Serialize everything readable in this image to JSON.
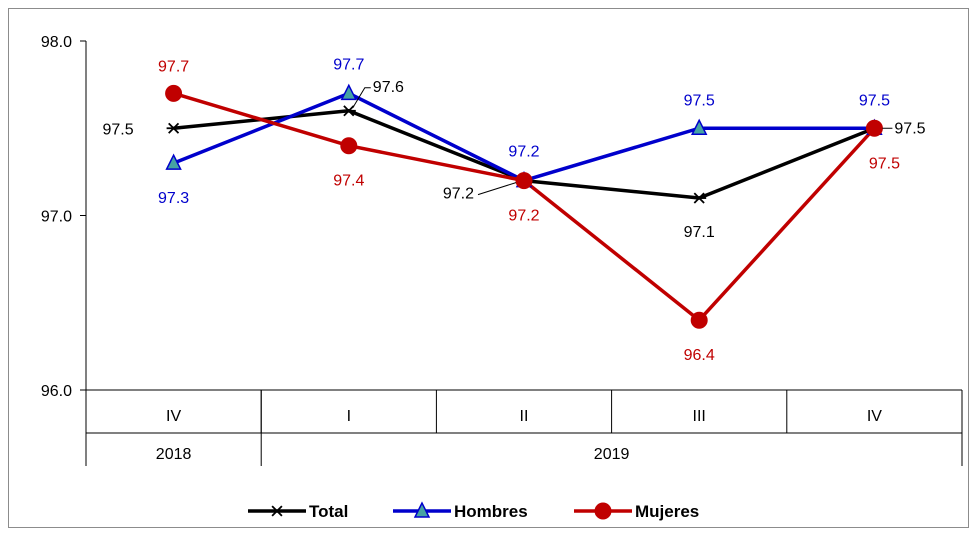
{
  "chart_data": {
    "type": "line",
    "title": "",
    "xlabel": "",
    "ylabel": "",
    "ylim": [
      96.0,
      98.0
    ],
    "yticks": [
      "96.0",
      "97.0",
      "98.0"
    ],
    "categories": [
      "IV",
      "I",
      "II",
      "III",
      "IV"
    ],
    "groups": [
      {
        "label": "2018",
        "span": [
          0,
          0
        ]
      },
      {
        "label": "2019",
        "span": [
          1,
          4
        ]
      }
    ],
    "grid": false,
    "legend_position": "bottom",
    "series": [
      {
        "name": "Total",
        "color": "#000000",
        "marker": "asterisk",
        "values": [
          97.5,
          97.6,
          97.2,
          97.1,
          97.5
        ],
        "labels": [
          "97.5",
          "97.6",
          "97.2",
          "97.1",
          "97.5"
        ]
      },
      {
        "name": "Hombres",
        "color": "#0000cc",
        "marker": "triangle",
        "values": [
          97.3,
          97.7,
          97.2,
          97.5,
          97.5
        ],
        "labels": [
          "97.3",
          "97.7",
          "97.2",
          "97.5",
          "97.5"
        ]
      },
      {
        "name": "Mujeres",
        "color": "#c00000",
        "marker": "circle",
        "values": [
          97.7,
          97.4,
          97.2,
          96.4,
          97.5
        ],
        "labels": [
          "97.7",
          "97.4",
          "97.2",
          "96.4",
          "97.5"
        ]
      }
    ]
  }
}
